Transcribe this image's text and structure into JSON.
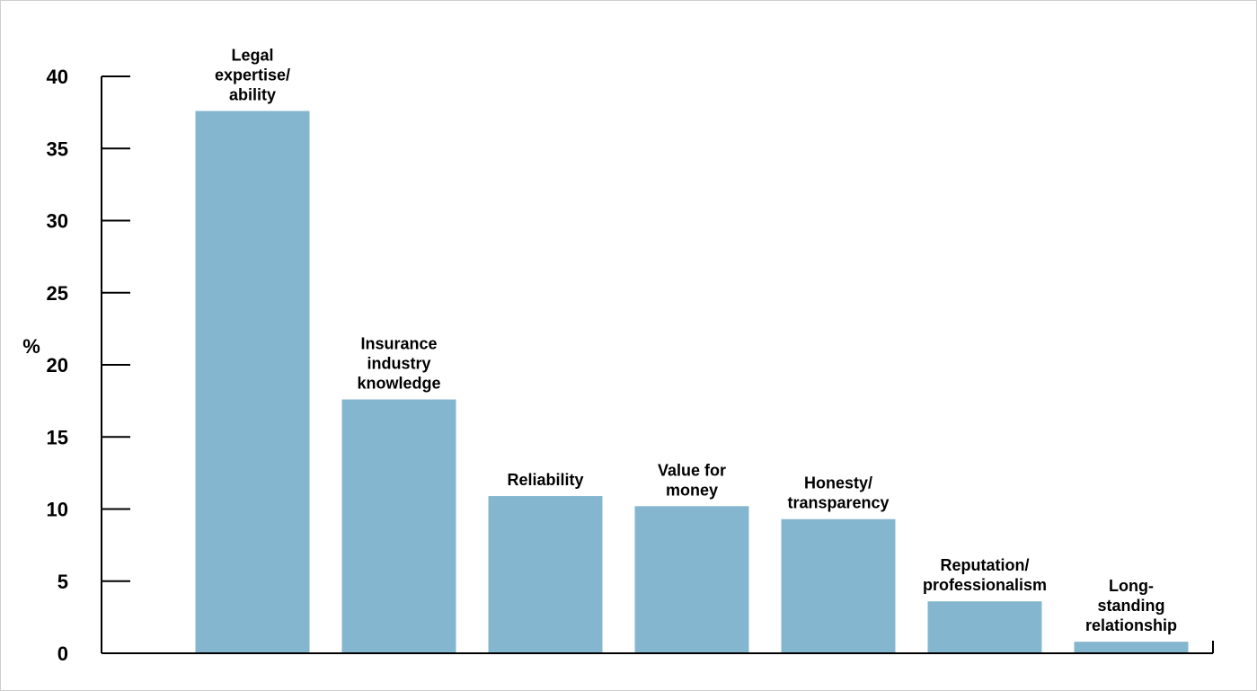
{
  "chart_data": {
    "type": "bar",
    "categories": [
      "Legal expertise/ ability",
      "Insurance industry knowledge",
      "Reliability",
      "Value for money",
      "Honesty/ transparency",
      "Reputation/ professionalism",
      "Long-standing relationship"
    ],
    "category_label_lines": [
      [
        "Legal",
        "expertise/",
        "ability"
      ],
      [
        "Insurance",
        "industry",
        "knowledge"
      ],
      [
        "Reliability"
      ],
      [
        "Value for",
        "money"
      ],
      [
        "Honesty/",
        "transparency"
      ],
      [
        "Reputation/",
        "professionalism"
      ],
      [
        "Long-",
        "standing",
        "relationship"
      ]
    ],
    "values": [
      37.6,
      17.6,
      10.9,
      10.2,
      9.3,
      3.6,
      0.8
    ],
    "title": "",
    "xlabel": "",
    "ylabel": "%",
    "ylim": [
      0,
      40
    ],
    "yticks": [
      0,
      5,
      10,
      15,
      20,
      25,
      30,
      35,
      40
    ],
    "grid": false,
    "legend": "none",
    "bar_color": "#84b7cf"
  }
}
